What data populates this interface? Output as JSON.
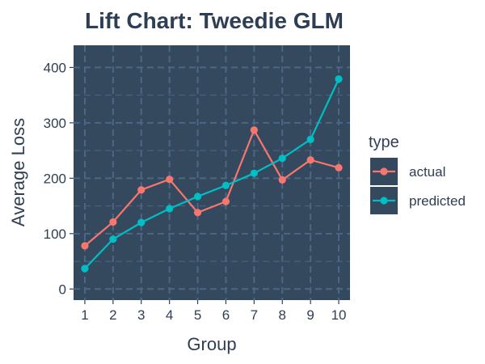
{
  "colors": {
    "panel": "#34495e",
    "grid": "#4c6784",
    "text": "#2e3f55",
    "actual": "#f8766d",
    "predicted": "#00bfc4"
  },
  "chart_data": {
    "type": "line",
    "title": "Lift Chart: Tweedie GLM",
    "xlabel": "Group",
    "ylabel": "Average Loss",
    "x": [
      1,
      2,
      3,
      4,
      5,
      6,
      7,
      8,
      9,
      10
    ],
    "xticks": [
      "1",
      "2",
      "3",
      "4",
      "5",
      "6",
      "7",
      "8",
      "9",
      "10"
    ],
    "yticks": [
      "0",
      "100",
      "200",
      "300",
      "400"
    ],
    "xlim": [
      0.6,
      10.4
    ],
    "ylim": [
      -20,
      440
    ],
    "grid": true,
    "legend_title": "type",
    "legend_position": "right",
    "series": [
      {
        "name": "actual",
        "color": "#f8766d",
        "values": [
          78,
          121,
          179,
          198,
          138,
          158,
          287,
          197,
          233,
          219
        ]
      },
      {
        "name": "predicted",
        "color": "#00bfc4",
        "values": [
          37,
          90,
          120,
          145,
          167,
          187,
          209,
          236,
          270,
          379
        ]
      }
    ]
  }
}
